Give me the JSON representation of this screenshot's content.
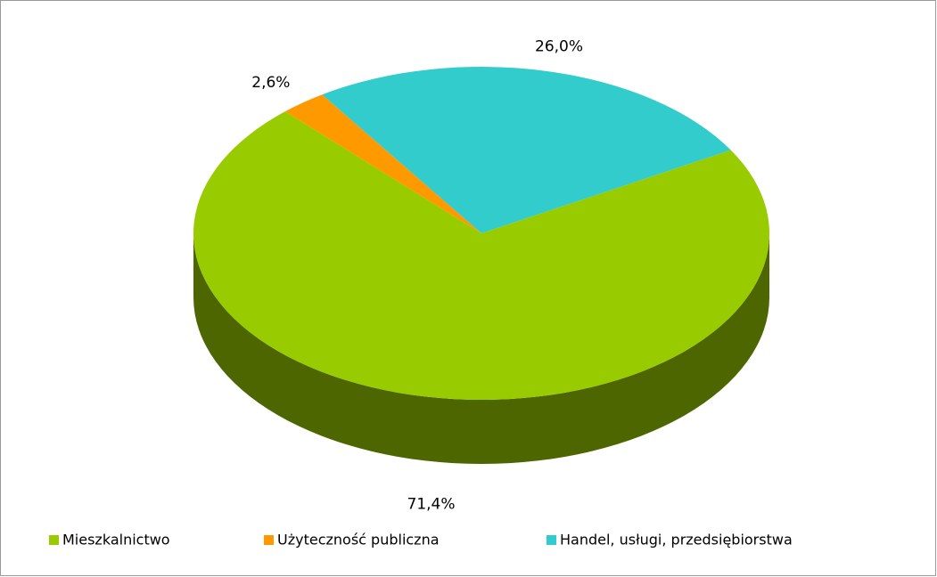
{
  "chart_data": {
    "type": "pie",
    "categories": [
      "Mieszkalnictwo",
      "Użyteczność publiczna",
      "Handel, usługi, przedsiębiorstwa"
    ],
    "values": [
      71.4,
      2.6,
      26.0
    ],
    "value_labels": [
      "71,4%",
      "2,6%",
      "26,0%"
    ],
    "colors": [
      "#99cc00",
      "#ff9900",
      "#33cccc"
    ],
    "legend": "bottom"
  }
}
